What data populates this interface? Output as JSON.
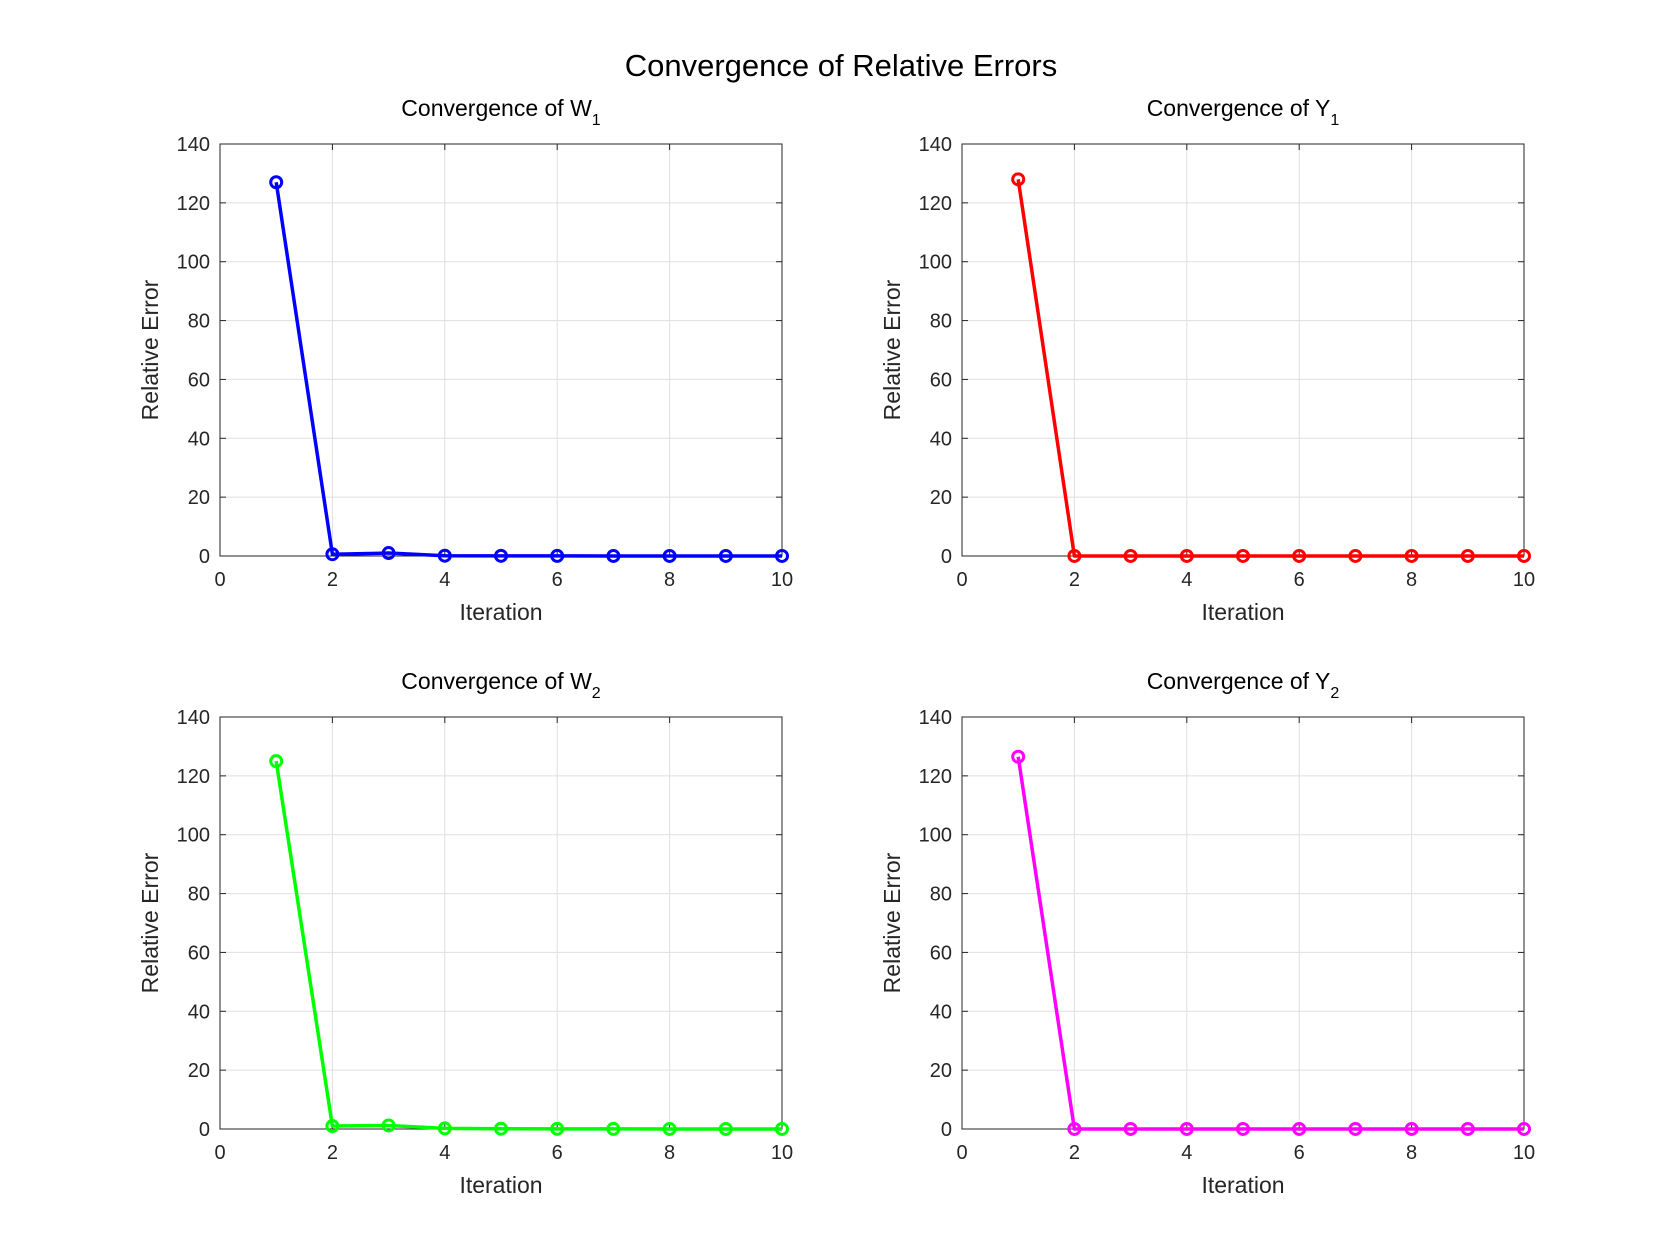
{
  "figure": {
    "title": "Convergence of Relative Errors"
  },
  "chart_data": [
    {
      "type": "line",
      "title": "Convergence of W",
      "title_subscript": "1",
      "xlabel": "Iteration",
      "ylabel": "Relative Error",
      "xlim": [
        0,
        10
      ],
      "ylim": [
        0,
        140
      ],
      "xticks": [
        0,
        2,
        4,
        6,
        8,
        10
      ],
      "yticks": [
        0,
        20,
        40,
        60,
        80,
        100,
        120,
        140
      ],
      "grid": true,
      "marker": "circle",
      "color": "#0000ff",
      "x": [
        1,
        2,
        3,
        4,
        5,
        6,
        7,
        8,
        9,
        10
      ],
      "values": [
        127,
        0.6,
        1.0,
        0.1,
        0.05,
        0.03,
        0.02,
        0.01,
        0.01,
        0.01
      ]
    },
    {
      "type": "line",
      "title": "Convergence of Y",
      "title_subscript": "1",
      "xlabel": "Iteration",
      "ylabel": "Relative Error",
      "xlim": [
        0,
        10
      ],
      "ylim": [
        0,
        140
      ],
      "xticks": [
        0,
        2,
        4,
        6,
        8,
        10
      ],
      "yticks": [
        0,
        20,
        40,
        60,
        80,
        100,
        120,
        140
      ],
      "grid": true,
      "marker": "circle",
      "color": "#ff0000",
      "x": [
        1,
        2,
        3,
        4,
        5,
        6,
        7,
        8,
        9,
        10
      ],
      "values": [
        128,
        0.02,
        0.01,
        0.01,
        0.01,
        0.01,
        0.01,
        0.01,
        0.01,
        0.01
      ]
    },
    {
      "type": "line",
      "title": "Convergence of W",
      "title_subscript": "2",
      "xlabel": "Iteration",
      "ylabel": "Relative Error",
      "xlim": [
        0,
        10
      ],
      "ylim": [
        0,
        140
      ],
      "xticks": [
        0,
        2,
        4,
        6,
        8,
        10
      ],
      "yticks": [
        0,
        20,
        40,
        60,
        80,
        100,
        120,
        140
      ],
      "grid": true,
      "marker": "circle",
      "color": "#00ff00",
      "x": [
        1,
        2,
        3,
        4,
        5,
        6,
        7,
        8,
        9,
        10
      ],
      "values": [
        125,
        1.0,
        1.2,
        0.2,
        0.1,
        0.05,
        0.03,
        0.02,
        0.02,
        0.01
      ]
    },
    {
      "type": "line",
      "title": "Convergence of Y",
      "title_subscript": "2",
      "xlabel": "Iteration",
      "ylabel": "Relative Error",
      "xlim": [
        0,
        10
      ],
      "ylim": [
        0,
        140
      ],
      "xticks": [
        0,
        2,
        4,
        6,
        8,
        10
      ],
      "yticks": [
        0,
        20,
        40,
        60,
        80,
        100,
        120,
        140
      ],
      "grid": true,
      "marker": "circle",
      "color": "#ff00ff",
      "x": [
        1,
        2,
        3,
        4,
        5,
        6,
        7,
        8,
        9,
        10
      ],
      "values": [
        126.5,
        0.02,
        0.01,
        0.01,
        0.01,
        0.01,
        0.01,
        0.01,
        0.01,
        0.01
      ]
    }
  ]
}
